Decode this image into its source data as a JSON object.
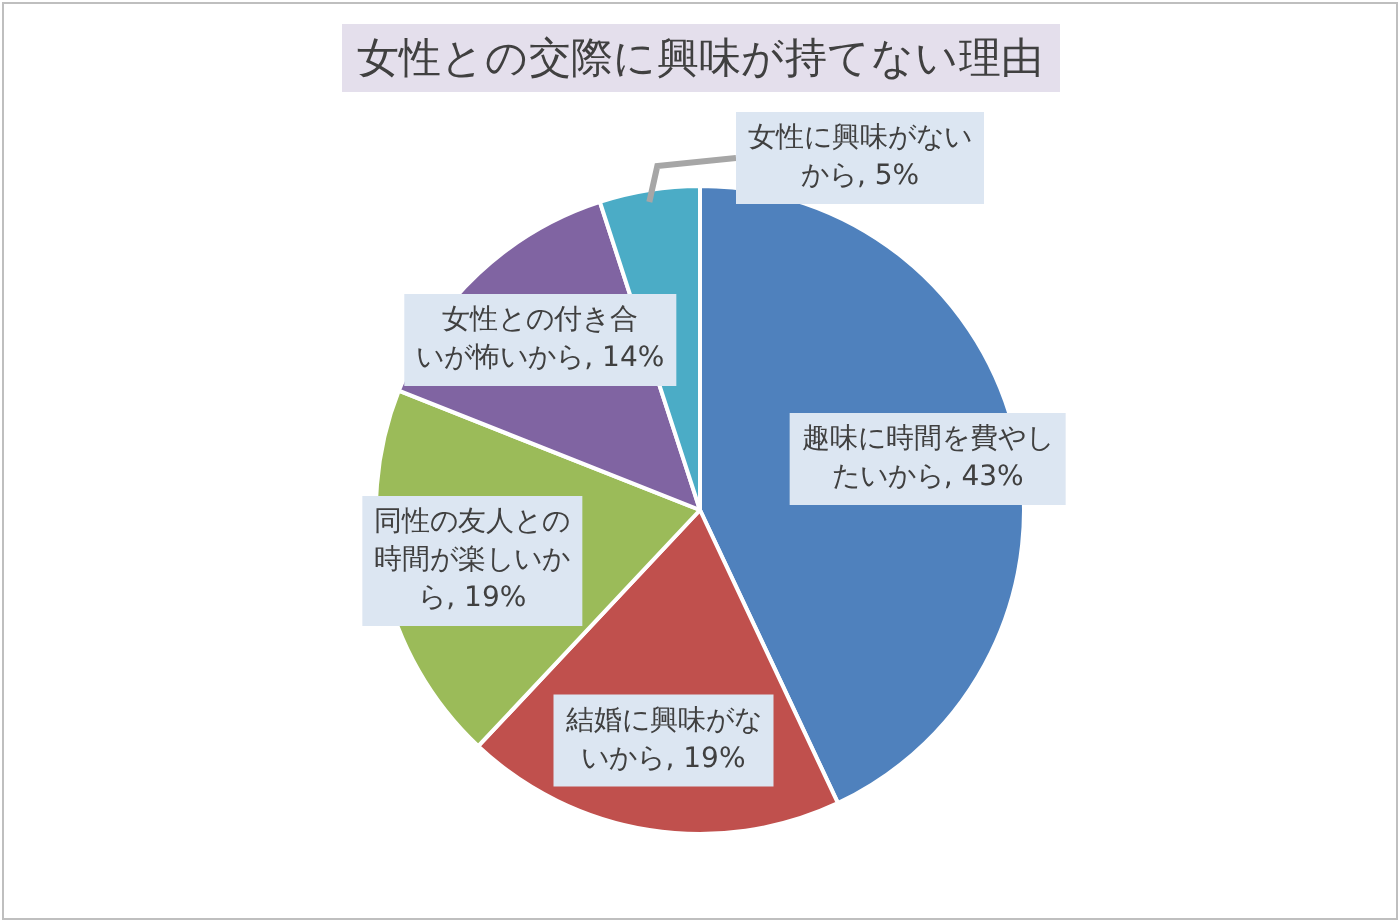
{
  "chart_data": {
    "type": "pie",
    "title": "女性との交際に興味が持てない理由",
    "categories": [
      "趣味に時間を費やしたいから",
      "結婚に興味がないから",
      "同性の友人との時間が楽しいから",
      "女性との付き合いが怖いから",
      "女性に興味がないから"
    ],
    "values": [
      43,
      19,
      19,
      14,
      5
    ],
    "value_labels": [
      ", 43%",
      ", 19%",
      ", 19%",
      ", 14%",
      ", 5%"
    ],
    "colors": [
      "#4f81bd",
      "#c0504d",
      "#9bbb59",
      "#8064a2",
      "#4bacc6"
    ],
    "legend": false
  }
}
